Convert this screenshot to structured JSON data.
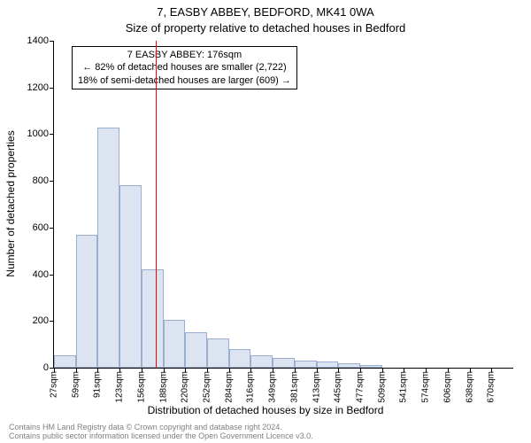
{
  "titles": {
    "line1": "7, EASBY ABBEY, BEDFORD, MK41 0WA",
    "line2": "Size of property relative to detached houses in Bedford"
  },
  "axes": {
    "ylabel": "Number of detached properties",
    "xlabel": "Distribution of detached houses by size in Bedford",
    "ylim": [
      0,
      1400
    ],
    "ytick_step": 200,
    "tick_fontsize": 11,
    "label_fontsize": 12
  },
  "histogram": {
    "type": "histogram",
    "bar_fill": "#dce4f2",
    "bar_border": "#9aaed0",
    "background_color": "#ffffff",
    "bin_width_sqm": 32,
    "bins": [
      {
        "label": "27sqm",
        "value": 55
      },
      {
        "label": "59sqm",
        "value": 570
      },
      {
        "label": "91sqm",
        "value": 1030
      },
      {
        "label": "123sqm",
        "value": 780
      },
      {
        "label": "156sqm",
        "value": 420
      },
      {
        "label": "188sqm",
        "value": 205
      },
      {
        "label": "220sqm",
        "value": 150
      },
      {
        "label": "252sqm",
        "value": 125
      },
      {
        "label": "284sqm",
        "value": 80
      },
      {
        "label": "316sqm",
        "value": 55
      },
      {
        "label": "349sqm",
        "value": 40
      },
      {
        "label": "381sqm",
        "value": 30
      },
      {
        "label": "413sqm",
        "value": 25
      },
      {
        "label": "445sqm",
        "value": 18
      },
      {
        "label": "477sqm",
        "value": 12
      },
      {
        "label": "509sqm",
        "value": 0
      },
      {
        "label": "541sqm",
        "value": 0
      },
      {
        "label": "574sqm",
        "value": 0
      },
      {
        "label": "606sqm",
        "value": 0
      },
      {
        "label": "638sqm",
        "value": 0
      },
      {
        "label": "670sqm",
        "value": 0
      }
    ]
  },
  "reference": {
    "value_sqm": 176,
    "line_color": "#ff0000",
    "line_width": 1,
    "annotation": {
      "line1": "7 EASBY ABBEY: 176sqm",
      "line2": "← 82% of detached houses are smaller (2,722)",
      "line3": "18% of semi-detached houses are larger (609) →",
      "border_color": "#000000",
      "background": "#ffffff",
      "fontsize": 11
    }
  },
  "footer": {
    "line1": "Contains HM Land Registry data © Crown copyright and database right 2024.",
    "line2": "Contains public sector information licensed under the Open Government Licence v3.0.",
    "color": "#808080",
    "fontsize": 9
  }
}
